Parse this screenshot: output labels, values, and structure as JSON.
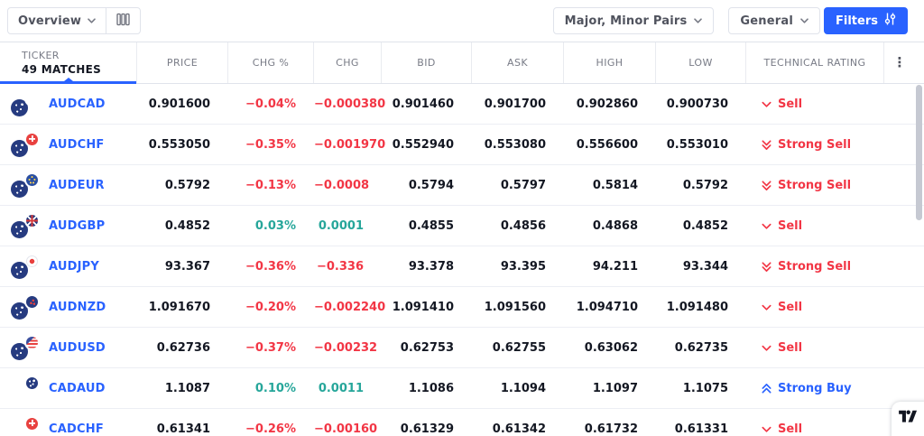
{
  "toolbar": {
    "view_dropdown": {
      "label": "Overview"
    },
    "pairs_dropdown": {
      "label": "Major, Minor Pairs"
    },
    "category_dropdown": {
      "label": "General"
    },
    "filters_button": {
      "label": "Filters"
    }
  },
  "colors": {
    "accent_blue": "#2962ff",
    "negative_red": "#f23645",
    "positive_green": "#26a69a"
  },
  "table": {
    "ticker_header": {
      "title": "TICKER",
      "matches": "49 MATCHES"
    },
    "columns": [
      "PRICE",
      "CHG %",
      "CHG",
      "BID",
      "ASK",
      "HIGH",
      "LOW",
      "TECHNICAL RATING"
    ],
    "rows": [
      {
        "ticker": "AUDCAD",
        "flags": [
          "AUD",
          "CAD"
        ],
        "price": "0.901600",
        "chg_pct": "−0.04%",
        "chg": "−0.000380",
        "bid": "0.901460",
        "ask": "0.901700",
        "high": "0.902860",
        "low": "0.900730",
        "rating": "Sell",
        "rating_direction": "sell"
      },
      {
        "ticker": "AUDCHF",
        "flags": [
          "AUD",
          "CHF"
        ],
        "price": "0.553050",
        "chg_pct": "−0.35%",
        "chg": "−0.001970",
        "bid": "0.552940",
        "ask": "0.553080",
        "high": "0.556600",
        "low": "0.553010",
        "rating": "Strong Sell",
        "rating_direction": "strong_sell"
      },
      {
        "ticker": "AUDEUR",
        "flags": [
          "AUD",
          "EUR"
        ],
        "price": "0.5792",
        "chg_pct": "−0.13%",
        "chg": "−0.0008",
        "bid": "0.5794",
        "ask": "0.5797",
        "high": "0.5814",
        "low": "0.5792",
        "rating": "Strong Sell",
        "rating_direction": "strong_sell"
      },
      {
        "ticker": "AUDGBP",
        "flags": [
          "AUD",
          "GBP"
        ],
        "price": "0.4852",
        "chg_pct": "0.03%",
        "chg": "0.0001",
        "bid": "0.4855",
        "ask": "0.4856",
        "high": "0.4868",
        "low": "0.4852",
        "rating": "Sell",
        "rating_direction": "sell"
      },
      {
        "ticker": "AUDJPY",
        "flags": [
          "AUD",
          "JPY"
        ],
        "price": "93.367",
        "chg_pct": "−0.36%",
        "chg": "−0.336",
        "bid": "93.378",
        "ask": "93.395",
        "high": "94.211",
        "low": "93.344",
        "rating": "Strong Sell",
        "rating_direction": "strong_sell"
      },
      {
        "ticker": "AUDNZD",
        "flags": [
          "AUD",
          "NZD"
        ],
        "price": "1.091670",
        "chg_pct": "−0.20%",
        "chg": "−0.002240",
        "bid": "1.091410",
        "ask": "1.091560",
        "high": "1.094710",
        "low": "1.091480",
        "rating": "Sell",
        "rating_direction": "sell"
      },
      {
        "ticker": "AUDUSD",
        "flags": [
          "AUD",
          "USD"
        ],
        "price": "0.62736",
        "chg_pct": "−0.37%",
        "chg": "−0.00232",
        "bid": "0.62753",
        "ask": "0.62755",
        "high": "0.63062",
        "low": "0.62735",
        "rating": "Sell",
        "rating_direction": "sell"
      },
      {
        "ticker": "CADAUD",
        "flags": [
          "CAD",
          "AUD"
        ],
        "price": "1.1087",
        "chg_pct": "0.10%",
        "chg": "0.0011",
        "bid": "1.1086",
        "ask": "1.1094",
        "high": "1.1097",
        "low": "1.1075",
        "rating": "Strong Buy",
        "rating_direction": "strong_buy"
      },
      {
        "ticker": "CADCHF",
        "flags": [
          "CAD",
          "CHF"
        ],
        "price": "0.61341",
        "chg_pct": "−0.26%",
        "chg": "−0.00160",
        "bid": "0.61329",
        "ask": "0.61342",
        "high": "0.61732",
        "low": "0.61331",
        "rating": "Sell",
        "rating_direction": "sell"
      }
    ]
  },
  "icons": {
    "view_columns": "columns-icon",
    "dropdown_caret": "chevron-down-icon",
    "filters": "sliders-icon",
    "header_menu": "kebab-menu-icon",
    "rating_sell": "chevron-down-icon",
    "rating_strong_sell": "double-chevron-down-icon",
    "rating_strong_buy": "double-chevron-up-icon",
    "watermark": "tradingview-logo"
  }
}
